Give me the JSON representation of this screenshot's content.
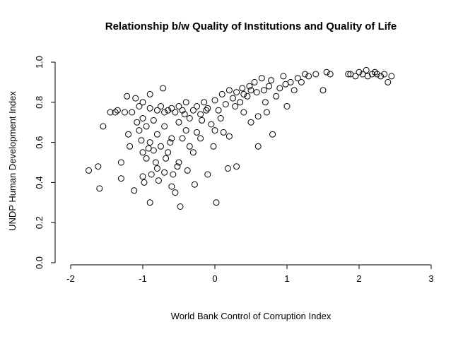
{
  "chart_data": {
    "type": "scatter",
    "title": "Relationship b/w Quality of Institutions and Quality of Life",
    "xlabel": "World Bank Control of Corruption Index",
    "ylabel": "UNDP Human Development Index",
    "xlim": [
      -2,
      3
    ],
    "ylim": [
      0.0,
      1.0
    ],
    "xtick_values": [
      -2,
      -1,
      0,
      1,
      2,
      3
    ],
    "xtick_labels": [
      "-2",
      "-1",
      "0",
      "1",
      "2",
      "3"
    ],
    "ytick_values": [
      0.0,
      0.2,
      0.4,
      0.6,
      0.8,
      1.0
    ],
    "ytick_labels": [
      "0.0",
      "0.2",
      "0.4",
      "0.6",
      "0.8",
      "1.0"
    ],
    "grid": false,
    "legend": "none",
    "marker": "open-circle",
    "marker_color": "#000000",
    "background_color": "#ffffff",
    "points": [
      [
        -1.75,
        0.46
      ],
      [
        -1.62,
        0.48
      ],
      [
        -1.6,
        0.37
      ],
      [
        -1.55,
        0.68
      ],
      [
        -1.45,
        0.75
      ],
      [
        -1.38,
        0.75
      ],
      [
        -1.35,
        0.76
      ],
      [
        -1.3,
        0.42
      ],
      [
        -1.3,
        0.5
      ],
      [
        -1.25,
        0.75
      ],
      [
        -1.22,
        0.83
      ],
      [
        -1.2,
        0.64
      ],
      [
        -1.18,
        0.58
      ],
      [
        -1.15,
        0.75
      ],
      [
        -1.12,
        0.36
      ],
      [
        -1.1,
        0.82
      ],
      [
        -1.08,
        0.7
      ],
      [
        -1.05,
        0.78
      ],
      [
        -1.05,
        0.66
      ],
      [
        -1.02,
        0.61
      ],
      [
        -1.0,
        0.8
      ],
      [
        -1.0,
        0.72
      ],
      [
        -1.0,
        0.55
      ],
      [
        -1.0,
        0.43
      ],
      [
        -0.98,
        0.4
      ],
      [
        -0.95,
        0.68
      ],
      [
        -0.95,
        0.52
      ],
      [
        -0.92,
        0.57
      ],
      [
        -0.9,
        0.84
      ],
      [
        -0.9,
        0.77
      ],
      [
        -0.9,
        0.6
      ],
      [
        -0.9,
        0.3
      ],
      [
        -0.88,
        0.44
      ],
      [
        -0.85,
        0.71
      ],
      [
        -0.85,
        0.56
      ],
      [
        -0.82,
        0.5
      ],
      [
        -0.8,
        0.76
      ],
      [
        -0.8,
        0.64
      ],
      [
        -0.8,
        0.47
      ],
      [
        -0.78,
        0.41
      ],
      [
        -0.75,
        0.78
      ],
      [
        -0.75,
        0.58
      ],
      [
        -0.72,
        0.87
      ],
      [
        -0.7,
        0.75
      ],
      [
        -0.7,
        0.68
      ],
      [
        -0.7,
        0.45
      ],
      [
        -0.68,
        0.52
      ],
      [
        -0.65,
        0.76
      ],
      [
        -0.65,
        0.55
      ],
      [
        -0.62,
        0.6
      ],
      [
        -0.6,
        0.77
      ],
      [
        -0.6,
        0.62
      ],
      [
        -0.6,
        0.38
      ],
      [
        -0.58,
        0.44
      ],
      [
        -0.55,
        0.75
      ],
      [
        -0.55,
        0.35
      ],
      [
        -0.52,
        0.48
      ],
      [
        -0.5,
        0.78
      ],
      [
        -0.5,
        0.7
      ],
      [
        -0.5,
        0.5
      ],
      [
        -0.48,
        0.28
      ],
      [
        -0.45,
        0.76
      ],
      [
        -0.45,
        0.62
      ],
      [
        -0.42,
        0.74
      ],
      [
        -0.4,
        0.8
      ],
      [
        -0.4,
        0.66
      ],
      [
        -0.38,
        0.46
      ],
      [
        -0.35,
        0.72
      ],
      [
        -0.35,
        0.58
      ],
      [
        -0.3,
        0.76
      ],
      [
        -0.3,
        0.55
      ],
      [
        -0.28,
        0.39
      ],
      [
        -0.25,
        0.78
      ],
      [
        -0.25,
        0.65
      ],
      [
        -0.2,
        0.74
      ],
      [
        -0.2,
        0.62
      ],
      [
        -0.18,
        0.71
      ],
      [
        -0.15,
        0.8
      ],
      [
        -0.12,
        0.76
      ],
      [
        -0.1,
        0.77
      ],
      [
        -0.1,
        0.44
      ],
      [
        -0.05,
        0.69
      ],
      [
        -0.02,
        0.58
      ],
      [
        0.0,
        0.81
      ],
      [
        0.0,
        0.66
      ],
      [
        0.02,
        0.3
      ],
      [
        0.05,
        0.76
      ],
      [
        0.08,
        0.72
      ],
      [
        0.1,
        0.84
      ],
      [
        0.12,
        0.65
      ],
      [
        0.15,
        0.79
      ],
      [
        0.18,
        0.47
      ],
      [
        0.2,
        0.86
      ],
      [
        0.2,
        0.63
      ],
      [
        0.25,
        0.82
      ],
      [
        0.28,
        0.78
      ],
      [
        0.3,
        0.85
      ],
      [
        0.3,
        0.48
      ],
      [
        0.35,
        0.8
      ],
      [
        0.38,
        0.87
      ],
      [
        0.4,
        0.84
      ],
      [
        0.4,
        0.75
      ],
      [
        0.45,
        0.83
      ],
      [
        0.48,
        0.88
      ],
      [
        0.5,
        0.86
      ],
      [
        0.5,
        0.7
      ],
      [
        0.55,
        0.9
      ],
      [
        0.58,
        0.85
      ],
      [
        0.6,
        0.73
      ],
      [
        0.6,
        0.58
      ],
      [
        0.65,
        0.92
      ],
      [
        0.68,
        0.86
      ],
      [
        0.7,
        0.8
      ],
      [
        0.72,
        0.75
      ],
      [
        0.75,
        0.88
      ],
      [
        0.78,
        0.91
      ],
      [
        0.8,
        0.64
      ],
      [
        0.85,
        0.83
      ],
      [
        0.9,
        0.87
      ],
      [
        0.95,
        0.93
      ],
      [
        0.98,
        0.89
      ],
      [
        1.0,
        0.78
      ],
      [
        1.05,
        0.9
      ],
      [
        1.1,
        0.86
      ],
      [
        1.15,
        0.92
      ],
      [
        1.2,
        0.9
      ],
      [
        1.25,
        0.94
      ],
      [
        1.3,
        0.93
      ],
      [
        1.4,
        0.94
      ],
      [
        1.5,
        0.86
      ],
      [
        1.55,
        0.95
      ],
      [
        1.6,
        0.94
      ],
      [
        1.85,
        0.94
      ],
      [
        1.88,
        0.94
      ],
      [
        1.95,
        0.93
      ],
      [
        2.0,
        0.95
      ],
      [
        2.05,
        0.94
      ],
      [
        2.1,
        0.96
      ],
      [
        2.12,
        0.93
      ],
      [
        2.18,
        0.94
      ],
      [
        2.22,
        0.95
      ],
      [
        2.25,
        0.94
      ],
      [
        2.3,
        0.93
      ],
      [
        2.35,
        0.94
      ],
      [
        2.4,
        0.9
      ],
      [
        2.45,
        0.93
      ]
    ]
  }
}
